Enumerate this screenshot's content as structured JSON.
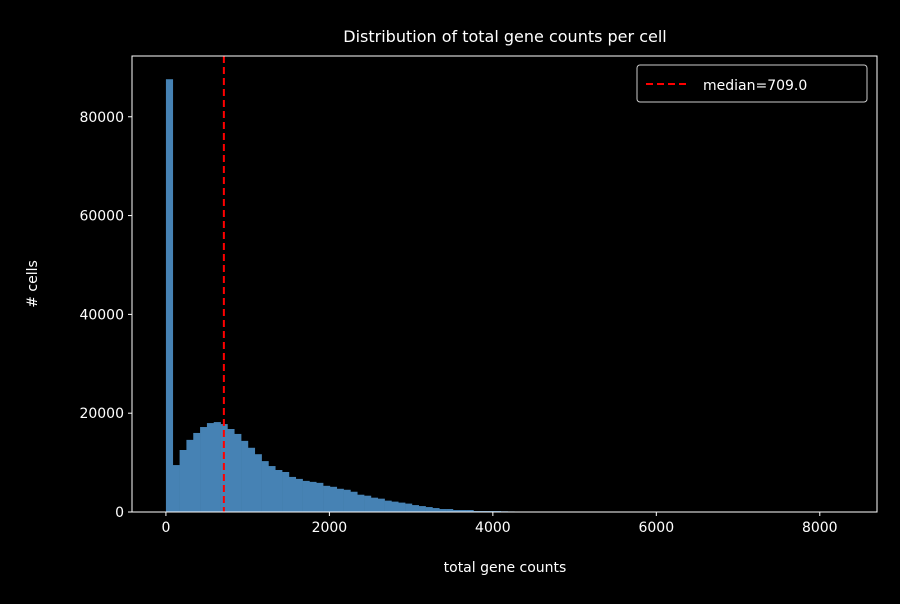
{
  "chart_data": {
    "type": "bar",
    "title": "Distribution of total gene counts per cell",
    "xlabel": "total gene counts",
    "ylabel": "# cells",
    "xlim": [
      -415,
      8700
    ],
    "ylim": [
      0,
      92300
    ],
    "xticks": [
      0,
      2000,
      4000,
      6000,
      8000
    ],
    "yticks": [
      0,
      20000,
      40000,
      60000,
      80000
    ],
    "bin_start": 0,
    "bin_width": 83.6,
    "values": [
      87600,
      9500,
      12550,
      14600,
      16000,
      17200,
      18000,
      18200,
      17800,
      16800,
      15800,
      14400,
      13000,
      11700,
      10300,
      9300,
      8500,
      8100,
      7100,
      6700,
      6300,
      6100,
      5900,
      5300,
      5100,
      4700,
      4500,
      4100,
      3500,
      3300,
      2900,
      2700,
      2300,
      2100,
      1900,
      1700,
      1400,
      1200,
      1000,
      800,
      600,
      600,
      400,
      400,
      400,
      200,
      200,
      200,
      200,
      150,
      120,
      100,
      80,
      60,
      50,
      40,
      30,
      25,
      20,
      15,
      12,
      10,
      8,
      6,
      5,
      4,
      3,
      3,
      2,
      2,
      1,
      1,
      1,
      1,
      0,
      0,
      0,
      0,
      0,
      0,
      0,
      0,
      0,
      0,
      0,
      0,
      0,
      0,
      0,
      0,
      0,
      0,
      0,
      0,
      0,
      0,
      0,
      0,
      0,
      1
    ],
    "bar_color": "#4682b4",
    "median": 709.0,
    "median_color": "#ff0000",
    "legend": {
      "label": "median=709.0",
      "placement": "top-right"
    },
    "grid": false
  }
}
